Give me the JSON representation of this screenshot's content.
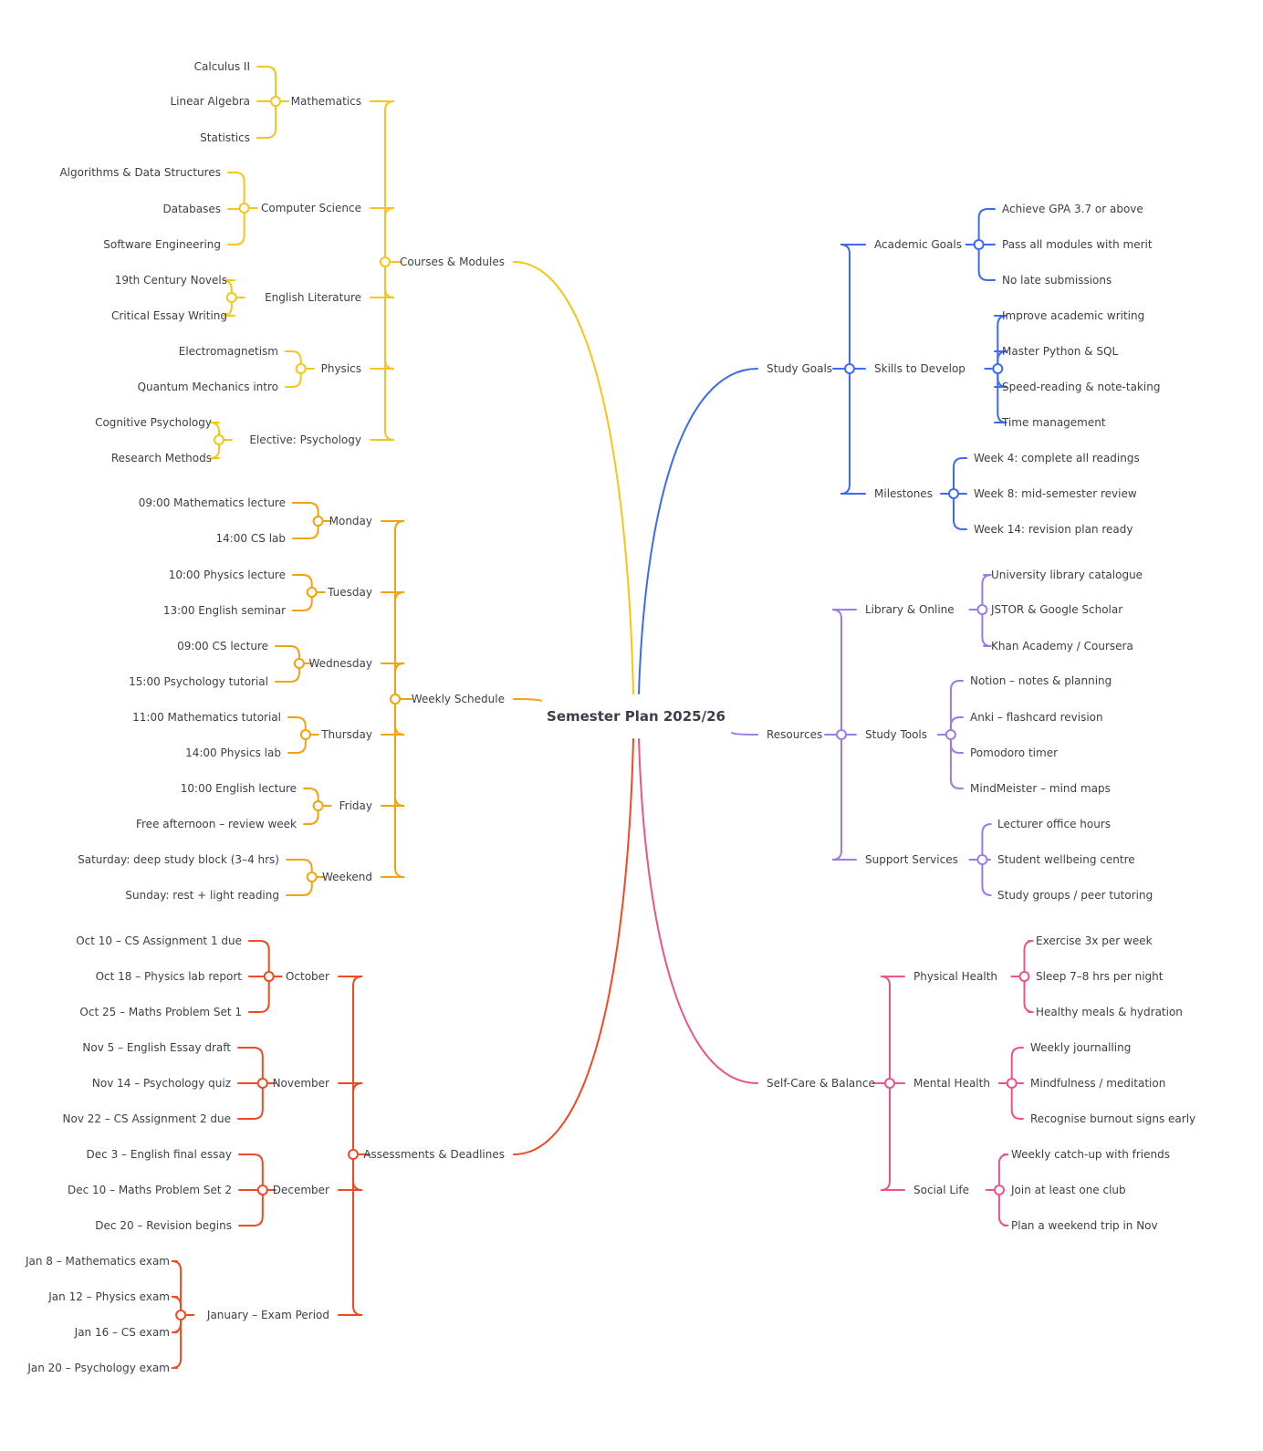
{
  "root": "Semester Plan 2025/26",
  "branches": [
    {
      "key": "courses",
      "color": "#F5C518",
      "label": "Courses & Modules",
      "groups": [
        {
          "label": "Mathematics",
          "leaves": [
            "Calculus II",
            "Linear Algebra",
            "Statistics"
          ]
        },
        {
          "label": "Computer Science",
          "leaves": [
            "Algorithms & Data Structures",
            "Databases",
            "Software Engineering"
          ]
        },
        {
          "label": "English Literature",
          "leaves": [
            "19th Century Novels",
            "Critical Essay Writing"
          ]
        },
        {
          "label": "Physics",
          "leaves": [
            "Electromagnetism",
            "Quantum Mechanics intro"
          ]
        },
        {
          "label": "Elective: Psychology",
          "leaves": [
            "Cognitive Psychology",
            "Research Methods"
          ]
        }
      ]
    },
    {
      "key": "schedule",
      "color": "#F2A20E",
      "label": "Weekly Schedule",
      "groups": [
        {
          "label": "Monday",
          "leaves": [
            "09:00 Mathematics lecture",
            "14:00 CS lab"
          ]
        },
        {
          "label": "Tuesday",
          "leaves": [
            "10:00 Physics lecture",
            "13:00 English seminar"
          ]
        },
        {
          "label": "Wednesday",
          "leaves": [
            "09:00 CS lecture",
            "15:00 Psychology tutorial"
          ]
        },
        {
          "label": "Thursday",
          "leaves": [
            "11:00 Mathematics tutorial",
            "14:00 Physics lab"
          ]
        },
        {
          "label": "Friday",
          "leaves": [
            "10:00 English lecture",
            "Free afternoon – review week"
          ]
        },
        {
          "label": "Weekend",
          "leaves": [
            "Saturday: deep study block (3–4 hrs)",
            "Sunday: rest + light reading"
          ]
        }
      ]
    },
    {
      "key": "assessments",
      "color": "#F04A24",
      "label": "Assessments & Deadlines",
      "groups": [
        {
          "label": "October",
          "leaves": [
            "Oct 10 – CS Assignment 1 due",
            "Oct 18 – Physics lab report",
            "Oct 25 – Maths Problem Set 1"
          ]
        },
        {
          "label": "November",
          "leaves": [
            "Nov 5 – English Essay draft",
            "Nov 14 – Psychology quiz",
            "Nov 22 – CS Assignment 2 due"
          ]
        },
        {
          "label": "December",
          "leaves": [
            "Dec 3 – English final essay",
            "Dec 10 – Maths Problem Set 2",
            "Dec 20 – Revision begins"
          ]
        },
        {
          "label": "January – Exam Period",
          "leaves": [
            "Jan 8 – Mathematics exam",
            "Jan 12 – Physics exam",
            "Jan 16 – CS exam",
            "Jan 20 – Psychology exam"
          ]
        }
      ]
    },
    {
      "key": "goals",
      "color": "#3D6BF0",
      "label": "Study Goals",
      "groups": [
        {
          "label": "Academic Goals",
          "leaves": [
            "Achieve GPA 3.7 or above",
            "Pass all modules with merit",
            "No late submissions"
          ]
        },
        {
          "label": "Skills to Develop",
          "leaves": [
            "Improve academic writing",
            "Master Python & SQL",
            "Speed-reading & note-taking",
            "Time management"
          ]
        },
        {
          "label": "Milestones",
          "leaves": [
            "Week 4: complete all readings",
            "Week 8: mid-semester review",
            "Week 14: revision plan ready"
          ]
        }
      ]
    },
    {
      "key": "resources",
      "color": "#9B7BE8",
      "label": "Resources",
      "groups": [
        {
          "label": "Library & Online",
          "leaves": [
            "University library catalogue",
            "JSTOR & Google Scholar",
            "Khan Academy / Coursera"
          ]
        },
        {
          "label": "Study Tools",
          "leaves": [
            "Notion – notes & planning",
            "Anki – flashcard revision",
            "Pomodoro timer",
            "MindMeister – mind maps"
          ]
        },
        {
          "label": "Support Services",
          "leaves": [
            "Lecturer office hours",
            "Student wellbeing centre",
            "Study groups / peer tutoring"
          ]
        }
      ]
    },
    {
      "key": "selfcare",
      "color": "#EC5486",
      "label": "Self-Care & Balance",
      "groups": [
        {
          "label": "Physical Health",
          "leaves": [
            "Exercise 3x per week",
            "Sleep 7–8 hrs per night",
            "Healthy meals & hydration"
          ]
        },
        {
          "label": "Mental Health",
          "leaves": [
            "Weekly journalling",
            "Mindfulness / meditation",
            "Recognise burnout signs early"
          ]
        },
        {
          "label": "Social Life",
          "leaves": [
            "Weekly catch-up with friends",
            "Join at least one club",
            "Plan a weekend trip in Nov"
          ]
        }
      ]
    }
  ]
}
